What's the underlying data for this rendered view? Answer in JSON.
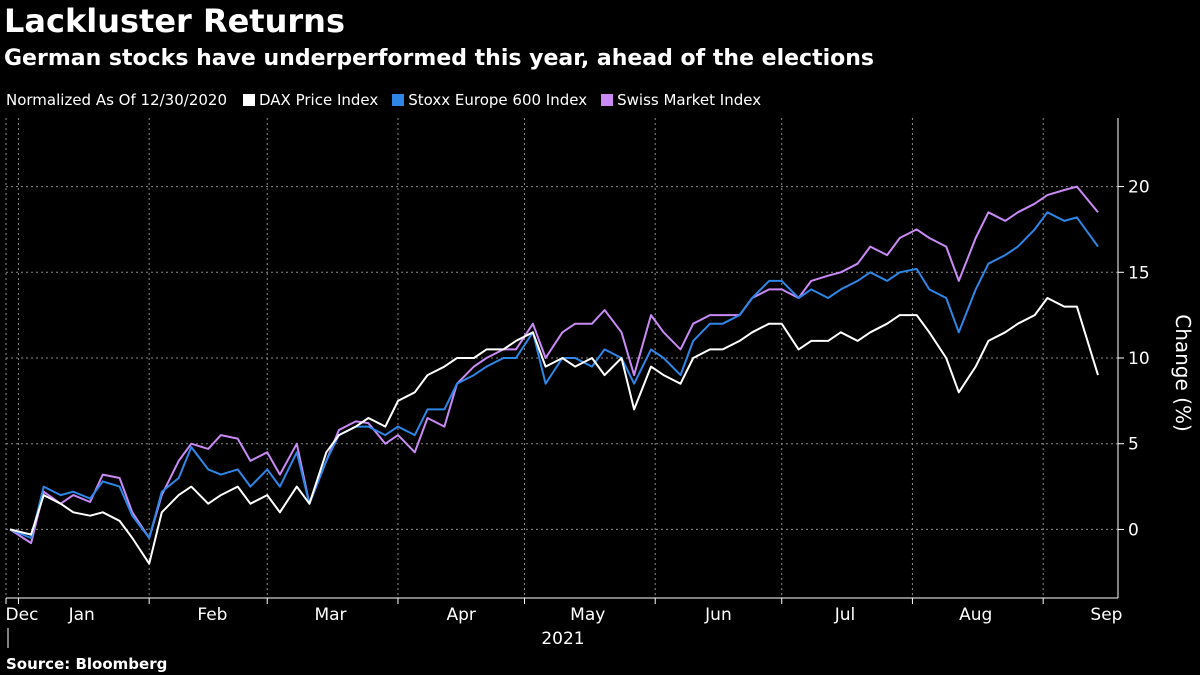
{
  "header": {
    "title": "Lackluster Returns",
    "subtitle": "German stocks have underperformed this year, ahead of the elections"
  },
  "legend": {
    "note": "Normalized As Of 12/30/2020",
    "items": [
      {
        "label": "DAX Price Index",
        "color": "#ffffff"
      },
      {
        "label": "Stoxx Europe 600 Index",
        "color": "#2e86e6"
      },
      {
        "label": "Swiss Market Index",
        "color": "#c98af5"
      }
    ]
  },
  "footer": {
    "source": "Source: Bloomberg"
  },
  "chart_data": {
    "type": "line",
    "title": "Lackluster Returns",
    "subtitle": "German stocks have underperformed this year, ahead of the elections",
    "ylabel": "Change (%)",
    "xlabel": "",
    "ylim": [
      -4,
      24
    ],
    "yticks": [
      0,
      5,
      10,
      15,
      20
    ],
    "xlim": [
      "2020-12-30",
      "2021-09-14"
    ],
    "x_months": [
      {
        "label": "Dec",
        "date": "2020-12-01"
      },
      {
        "label": "Jan",
        "date": "2021-01-01"
      },
      {
        "label": "Feb",
        "date": "2021-02-01"
      },
      {
        "label": "Mar",
        "date": "2021-03-01"
      },
      {
        "label": "Apr",
        "date": "2021-04-01"
      },
      {
        "label": "May",
        "date": "2021-05-01"
      },
      {
        "label": "Jun",
        "date": "2021-06-01"
      },
      {
        "label": "Jul",
        "date": "2021-07-01"
      },
      {
        "label": "Aug",
        "date": "2021-08-01"
      },
      {
        "label": "Sep",
        "date": "2021-09-01"
      }
    ],
    "year_label": "2021",
    "grid": true,
    "legend_position": "top-left",
    "axis_position": "right",
    "series": [
      {
        "name": "Swiss Market Index",
        "color": "#c98af5",
        "points": [
          [
            "2020-12-30",
            0
          ],
          [
            "2021-01-04",
            -0.8
          ],
          [
            "2021-01-07",
            2.2
          ],
          [
            "2021-01-11",
            1.5
          ],
          [
            "2021-01-14",
            2.0
          ],
          [
            "2021-01-18",
            1.6
          ],
          [
            "2021-01-21",
            3.2
          ],
          [
            "2021-01-25",
            3.0
          ],
          [
            "2021-01-28",
            1.0
          ],
          [
            "2021-02-01",
            -0.5
          ],
          [
            "2021-02-04",
            2.0
          ],
          [
            "2021-02-08",
            4.0
          ],
          [
            "2021-02-11",
            5.0
          ],
          [
            "2021-02-15",
            4.7
          ],
          [
            "2021-02-18",
            5.5
          ],
          [
            "2021-02-22",
            5.3
          ],
          [
            "2021-02-25",
            4.0
          ],
          [
            "2021-03-01",
            4.5
          ],
          [
            "2021-03-04",
            3.2
          ],
          [
            "2021-03-08",
            5.0
          ],
          [
            "2021-03-11",
            1.5
          ],
          [
            "2021-03-15",
            4.0
          ],
          [
            "2021-03-18",
            5.8
          ],
          [
            "2021-03-22",
            6.3
          ],
          [
            "2021-03-25",
            6.2
          ],
          [
            "2021-03-29",
            5.0
          ],
          [
            "2021-04-01",
            5.5
          ],
          [
            "2021-04-05",
            4.5
          ],
          [
            "2021-04-08",
            6.5
          ],
          [
            "2021-04-12",
            6.0
          ],
          [
            "2021-04-15",
            8.5
          ],
          [
            "2021-04-19",
            9.5
          ],
          [
            "2021-04-22",
            10.0
          ],
          [
            "2021-04-26",
            10.5
          ],
          [
            "2021-04-29",
            10.5
          ],
          [
            "2021-05-03",
            12.0
          ],
          [
            "2021-05-06",
            10.0
          ],
          [
            "2021-05-10",
            11.5
          ],
          [
            "2021-05-13",
            12.0
          ],
          [
            "2021-05-17",
            12.0
          ],
          [
            "2021-05-20",
            12.8
          ],
          [
            "2021-05-24",
            11.5
          ],
          [
            "2021-05-27",
            9.0
          ],
          [
            "2021-05-31",
            12.5
          ],
          [
            "2021-06-03",
            11.5
          ],
          [
            "2021-06-07",
            10.5
          ],
          [
            "2021-06-10",
            12.0
          ],
          [
            "2021-06-14",
            12.5
          ],
          [
            "2021-06-17",
            12.5
          ],
          [
            "2021-06-21",
            12.5
          ],
          [
            "2021-06-24",
            13.5
          ],
          [
            "2021-06-28",
            14.0
          ],
          [
            "2021-07-01",
            14.0
          ],
          [
            "2021-07-05",
            13.5
          ],
          [
            "2021-07-08",
            14.5
          ],
          [
            "2021-07-12",
            14.8
          ],
          [
            "2021-07-15",
            15.0
          ],
          [
            "2021-07-19",
            15.5
          ],
          [
            "2021-07-22",
            16.5
          ],
          [
            "2021-07-26",
            16.0
          ],
          [
            "2021-07-29",
            17.0
          ],
          [
            "2021-08-02",
            17.5
          ],
          [
            "2021-08-05",
            17.0
          ],
          [
            "2021-08-09",
            16.5
          ],
          [
            "2021-08-12",
            14.5
          ],
          [
            "2021-08-16",
            17.0
          ],
          [
            "2021-08-19",
            18.5
          ],
          [
            "2021-08-23",
            18.0
          ],
          [
            "2021-08-26",
            18.5
          ],
          [
            "2021-08-30",
            19.0
          ],
          [
            "2021-09-02",
            19.5
          ],
          [
            "2021-09-06",
            19.8
          ],
          [
            "2021-09-09",
            20.0
          ],
          [
            "2021-09-14",
            18.5
          ]
        ]
      },
      {
        "name": "Stoxx Europe 600 Index",
        "color": "#2e86e6",
        "points": [
          [
            "2020-12-30",
            0
          ],
          [
            "2021-01-04",
            -0.5
          ],
          [
            "2021-01-07",
            2.5
          ],
          [
            "2021-01-11",
            2.0
          ],
          [
            "2021-01-14",
            2.2
          ],
          [
            "2021-01-18",
            1.8
          ],
          [
            "2021-01-21",
            2.8
          ],
          [
            "2021-01-25",
            2.5
          ],
          [
            "2021-01-28",
            0.8
          ],
          [
            "2021-02-01",
            -0.5
          ],
          [
            "2021-02-04",
            2.2
          ],
          [
            "2021-02-08",
            3.0
          ],
          [
            "2021-02-11",
            4.8
          ],
          [
            "2021-02-15",
            3.5
          ],
          [
            "2021-02-18",
            3.2
          ],
          [
            "2021-02-22",
            3.5
          ],
          [
            "2021-02-25",
            2.5
          ],
          [
            "2021-03-01",
            3.5
          ],
          [
            "2021-03-04",
            2.5
          ],
          [
            "2021-03-08",
            4.5
          ],
          [
            "2021-03-11",
            1.5
          ],
          [
            "2021-03-15",
            4.0
          ],
          [
            "2021-03-18",
            5.5
          ],
          [
            "2021-03-22",
            6.0
          ],
          [
            "2021-03-25",
            6.0
          ],
          [
            "2021-03-29",
            5.5
          ],
          [
            "2021-04-01",
            6.0
          ],
          [
            "2021-04-05",
            5.5
          ],
          [
            "2021-04-08",
            7.0
          ],
          [
            "2021-04-12",
            7.0
          ],
          [
            "2021-04-15",
            8.5
          ],
          [
            "2021-04-19",
            9.0
          ],
          [
            "2021-04-22",
            9.5
          ],
          [
            "2021-04-26",
            10.0
          ],
          [
            "2021-04-29",
            10.0
          ],
          [
            "2021-05-03",
            11.5
          ],
          [
            "2021-05-06",
            8.5
          ],
          [
            "2021-05-10",
            10.0
          ],
          [
            "2021-05-13",
            10.0
          ],
          [
            "2021-05-17",
            9.5
          ],
          [
            "2021-05-20",
            10.5
          ],
          [
            "2021-05-24",
            10.0
          ],
          [
            "2021-05-27",
            8.5
          ],
          [
            "2021-05-31",
            10.5
          ],
          [
            "2021-06-03",
            10.0
          ],
          [
            "2021-06-07",
            9.0
          ],
          [
            "2021-06-10",
            11.0
          ],
          [
            "2021-06-14",
            12.0
          ],
          [
            "2021-06-17",
            12.0
          ],
          [
            "2021-06-21",
            12.5
          ],
          [
            "2021-06-24",
            13.5
          ],
          [
            "2021-06-28",
            14.5
          ],
          [
            "2021-07-01",
            14.5
          ],
          [
            "2021-07-05",
            13.5
          ],
          [
            "2021-07-08",
            14.0
          ],
          [
            "2021-07-12",
            13.5
          ],
          [
            "2021-07-15",
            14.0
          ],
          [
            "2021-07-19",
            14.5
          ],
          [
            "2021-07-22",
            15.0
          ],
          [
            "2021-07-26",
            14.5
          ],
          [
            "2021-07-29",
            15.0
          ],
          [
            "2021-08-02",
            15.2
          ],
          [
            "2021-08-05",
            14.0
          ],
          [
            "2021-08-09",
            13.5
          ],
          [
            "2021-08-12",
            11.5
          ],
          [
            "2021-08-16",
            14.0
          ],
          [
            "2021-08-19",
            15.5
          ],
          [
            "2021-08-23",
            16.0
          ],
          [
            "2021-08-26",
            16.5
          ],
          [
            "2021-08-30",
            17.5
          ],
          [
            "2021-09-02",
            18.5
          ],
          [
            "2021-09-06",
            18.0
          ],
          [
            "2021-09-09",
            18.2
          ],
          [
            "2021-09-14",
            16.5
          ]
        ]
      },
      {
        "name": "DAX Price Index",
        "color": "#ffffff",
        "points": [
          [
            "2020-12-30",
            0
          ],
          [
            "2021-01-04",
            -0.3
          ],
          [
            "2021-01-07",
            2.0
          ],
          [
            "2021-01-11",
            1.5
          ],
          [
            "2021-01-14",
            1.0
          ],
          [
            "2021-01-18",
            0.8
          ],
          [
            "2021-01-21",
            1.0
          ],
          [
            "2021-01-25",
            0.5
          ],
          [
            "2021-01-28",
            -0.5
          ],
          [
            "2021-02-01",
            -2.0
          ],
          [
            "2021-02-04",
            1.0
          ],
          [
            "2021-02-08",
            2.0
          ],
          [
            "2021-02-11",
            2.5
          ],
          [
            "2021-02-15",
            1.5
          ],
          [
            "2021-02-18",
            2.0
          ],
          [
            "2021-02-22",
            2.5
          ],
          [
            "2021-02-25",
            1.5
          ],
          [
            "2021-03-01",
            2.0
          ],
          [
            "2021-03-04",
            1.0
          ],
          [
            "2021-03-08",
            2.5
          ],
          [
            "2021-03-11",
            1.5
          ],
          [
            "2021-03-15",
            4.5
          ],
          [
            "2021-03-18",
            5.5
          ],
          [
            "2021-03-22",
            6.0
          ],
          [
            "2021-03-25",
            6.5
          ],
          [
            "2021-03-29",
            6.0
          ],
          [
            "2021-04-01",
            7.5
          ],
          [
            "2021-04-05",
            8.0
          ],
          [
            "2021-04-08",
            9.0
          ],
          [
            "2021-04-12",
            9.5
          ],
          [
            "2021-04-15",
            10.0
          ],
          [
            "2021-04-19",
            10.0
          ],
          [
            "2021-04-22",
            10.5
          ],
          [
            "2021-04-26",
            10.5
          ],
          [
            "2021-04-29",
            11.0
          ],
          [
            "2021-05-03",
            11.5
          ],
          [
            "2021-05-06",
            9.5
          ],
          [
            "2021-05-10",
            10.0
          ],
          [
            "2021-05-13",
            9.5
          ],
          [
            "2021-05-17",
            10.0
          ],
          [
            "2021-05-20",
            9.0
          ],
          [
            "2021-05-24",
            10.0
          ],
          [
            "2021-05-27",
            7.0
          ],
          [
            "2021-05-31",
            9.5
          ],
          [
            "2021-06-03",
            9.0
          ],
          [
            "2021-06-07",
            8.5
          ],
          [
            "2021-06-10",
            10.0
          ],
          [
            "2021-06-14",
            10.5
          ],
          [
            "2021-06-17",
            10.5
          ],
          [
            "2021-06-21",
            11.0
          ],
          [
            "2021-06-24",
            11.5
          ],
          [
            "2021-06-28",
            12.0
          ],
          [
            "2021-07-01",
            12.0
          ],
          [
            "2021-07-05",
            10.5
          ],
          [
            "2021-07-08",
            11.0
          ],
          [
            "2021-07-12",
            11.0
          ],
          [
            "2021-07-15",
            11.5
          ],
          [
            "2021-07-19",
            11.0
          ],
          [
            "2021-07-22",
            11.5
          ],
          [
            "2021-07-26",
            12.0
          ],
          [
            "2021-07-29",
            12.5
          ],
          [
            "2021-08-02",
            12.5
          ],
          [
            "2021-08-05",
            11.5
          ],
          [
            "2021-08-09",
            10.0
          ],
          [
            "2021-08-12",
            8.0
          ],
          [
            "2021-08-16",
            9.5
          ],
          [
            "2021-08-19",
            11.0
          ],
          [
            "2021-08-23",
            11.5
          ],
          [
            "2021-08-26",
            12.0
          ],
          [
            "2021-08-30",
            12.5
          ],
          [
            "2021-09-02",
            13.5
          ],
          [
            "2021-09-06",
            13.0
          ],
          [
            "2021-09-09",
            13.0
          ],
          [
            "2021-09-14",
            9.0
          ]
        ]
      }
    ]
  }
}
